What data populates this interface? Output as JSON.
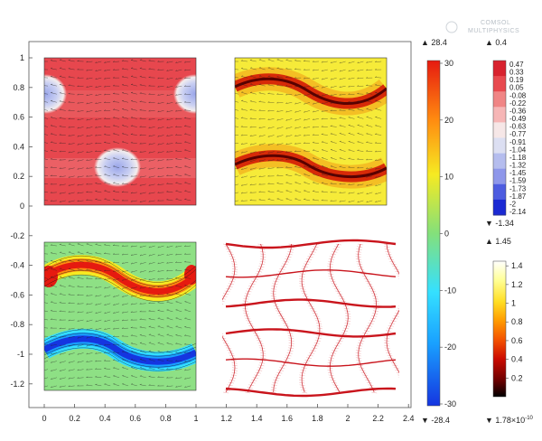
{
  "watermark": {
    "line1": "COMSOL",
    "line2": "MULTIPHYSICS"
  },
  "chart_data": {
    "type": "heatmap",
    "title": "",
    "xlabel": "",
    "ylabel": "",
    "grid": false,
    "xlim": [
      -0.1,
      2.4
    ],
    "ylim": [
      -1.3,
      1.1
    ],
    "x_ticks": [
      "0",
      "0.2",
      "0.4",
      "0.6",
      "0.8",
      "1",
      "1.2",
      "1.4",
      "1.6",
      "1.8",
      "2",
      "2.2",
      "2.4"
    ],
    "y_ticks": [
      "1",
      "0.8",
      "0.6",
      "0.4",
      "0.2",
      "0",
      "-0.2",
      "-0.4",
      "-0.6",
      "-0.8",
      "-1",
      "-1.2"
    ],
    "panels": [
      {
        "name": "top-left",
        "x": [
          0,
          1
        ],
        "y": [
          0,
          1
        ],
        "field": "vorticity-like, blue spots",
        "colormap": "red-white-blue"
      },
      {
        "name": "top-right",
        "x": [
          1.25,
          2.25
        ],
        "y": [
          0,
          1
        ],
        "field": "two wavy dark-red bands on yellow",
        "colormap": "heat"
      },
      {
        "name": "bottom-left",
        "x": [
          0,
          1
        ],
        "y": [
          -1.25,
          -0.25
        ],
        "field": "wavy red and blue bands on green with contours",
        "colormap": "rainbow"
      },
      {
        "name": "bottom-right",
        "x": [
          1.25,
          2.25
        ],
        "y": [
          -1.25,
          -0.25
        ],
        "field": "deformed red grid on white",
        "colormap": "grid"
      }
    ],
    "colorbars": [
      {
        "name": "rainbow",
        "max_label": "▲ 28.4",
        "min_label": "▼ -28.4",
        "ticks": [
          "30",
          "20",
          "10",
          "0",
          "-10",
          "-20",
          "-30"
        ],
        "range": [
          -30,
          30
        ],
        "colors": [
          "#1535e0",
          "#19a0ff",
          "#35e0ff",
          "#84e07a",
          "#f6ea22",
          "#ff8a10",
          "#e61a10"
        ]
      },
      {
        "name": "red-white-blue",
        "max_label": "▲ 0.4",
        "min_label": "▼ -1.34",
        "ticks": [
          "0.47",
          "0.33",
          "0.19",
          "0.05",
          "-0.08",
          "-0.22",
          "-0.36",
          "-0.49",
          "-0.63",
          "-0.77",
          "-0.91",
          "-1.04",
          "-1.18",
          "-1.32",
          "-1.45",
          "-1.59",
          "-1.73",
          "-1.87",
          "-2",
          "-2.14"
        ],
        "range": [
          -2.14,
          0.47
        ],
        "colors": [
          "#d8222e",
          "#e84a4f",
          "#f08585",
          "#f6b6b6",
          "#f6e7e7",
          "#dcdff2",
          "#b5bdee",
          "#8e97ea",
          "#4d5ce0",
          "#1b2ad3"
        ]
      },
      {
        "name": "heat",
        "max_label": "▲ 1.45",
        "min_label": "▼ 1.78×10",
        "min_exponent": "-10",
        "ticks": [
          "1.4",
          "1.2",
          "1",
          "0.8",
          "0.6",
          "0.4",
          "0.2"
        ],
        "range": [
          0,
          1.45
        ],
        "colors": [
          "#000000",
          "#6b0000",
          "#cc0b00",
          "#f45200",
          "#ff9b00",
          "#ffde24",
          "#ffff96",
          "#ffffff"
        ]
      }
    ]
  }
}
